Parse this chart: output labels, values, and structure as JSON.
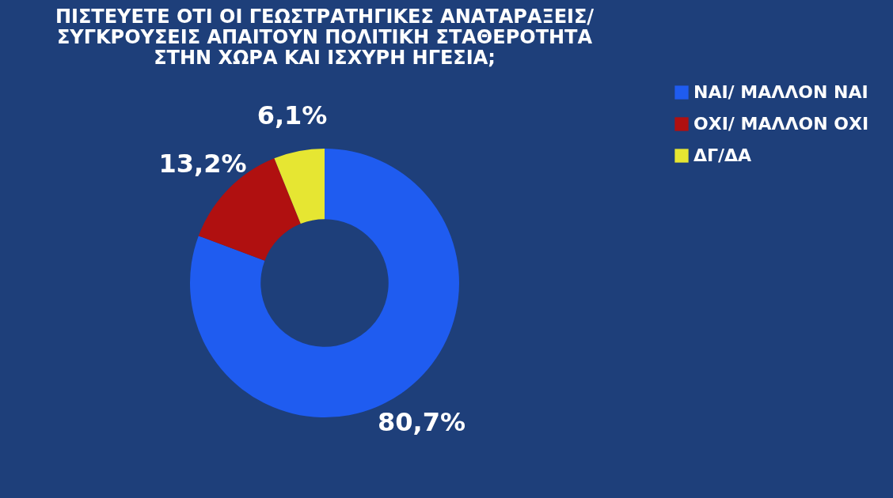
{
  "chart_data": {
    "type": "donut",
    "title": "ΠΙΣΤΕΥΕΤΕ ΟΤΙ ΟΙ ΓΕΩΣΤΡΑΤΗΓΙΚΕΣ ΑΝΑΤΑΡΑΞΕΙΣ/ ΣΥΓΚΡΟΥΣΕΙΣ ΑΠΑΙΤΟΥΝ ΠΟΛΙΤΙΚΗ ΣΤΑΘΕΡΟΤΗΤΑ ΣΤΗΝ ΧΩΡΑ ΚΑΙ ΙΣΧΥΡΗ ΗΓΕΣΙΑ;",
    "categories": [
      "ΝΑΙ/ ΜΑΛΛΟΝ ΝΑΙ",
      "ΟΧΙ/ ΜΑΛΛΟΝ ΟΧΙ",
      "ΔΓ/ΔΑ"
    ],
    "values": [
      80.7,
      13.2,
      6.1
    ],
    "colors": [
      "#1f5cf0",
      "#b01010",
      "#e6e632"
    ],
    "value_labels": [
      "80,7%",
      "13,2%",
      "6,1%"
    ],
    "legend": "right"
  }
}
